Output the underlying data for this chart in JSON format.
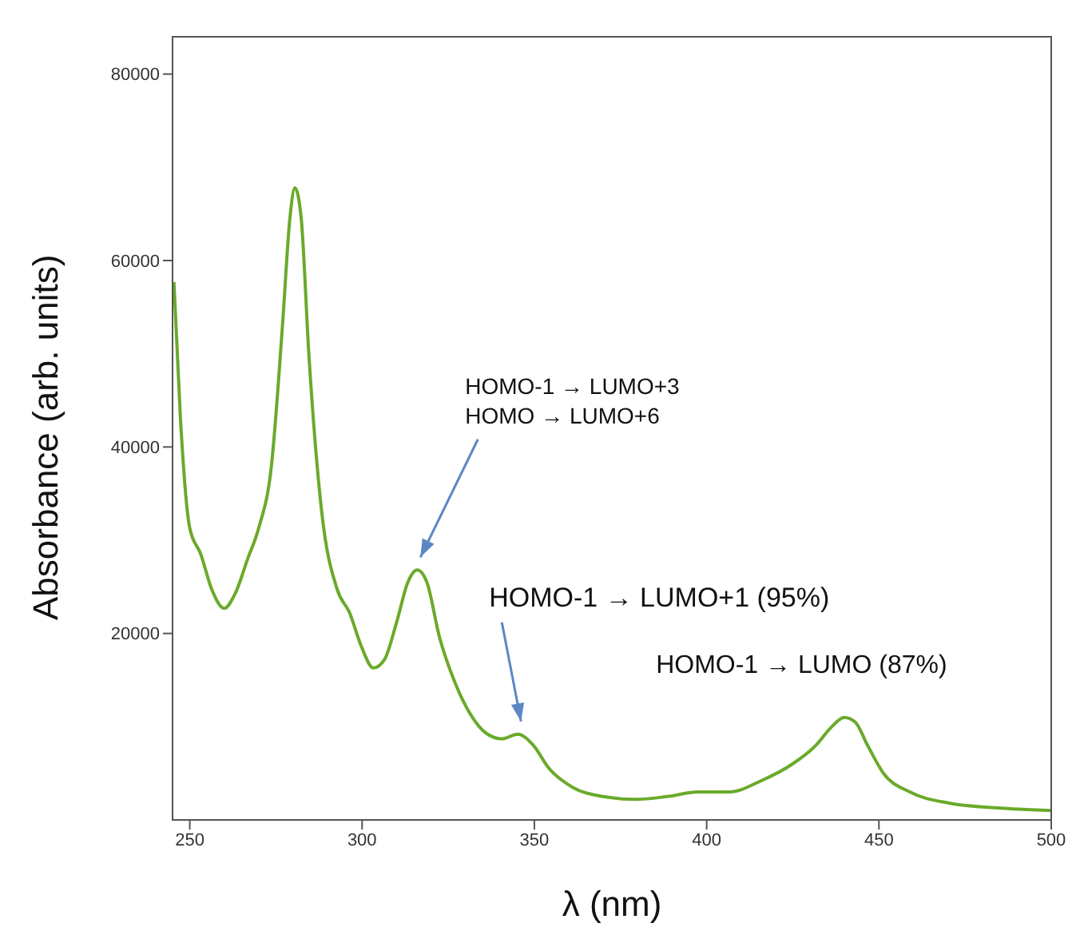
{
  "chart_data": {
    "type": "line",
    "xlabel": "λ (nm)",
    "ylabel": "Absorbance (arb. units)",
    "x": [
      245.4,
      247.3,
      250,
      253.2,
      256.4,
      260,
      263.2,
      266.8,
      270,
      273.7,
      276.9,
      279.1,
      280.5,
      282.3,
      284.6,
      288.3,
      292.8,
      296.4,
      299.6,
      303.3,
      306.5,
      310.1,
      313.3,
      316,
      318.8,
      322.4,
      327,
      331.5,
      336,
      340.6,
      345.2,
      349.7,
      354.3,
      361.1,
      370.2,
      379.3,
      388.4,
      397.5,
      406.6,
      415.8,
      424.9,
      431.7,
      436.3,
      439.9,
      443.1,
      446.7,
      451.3,
      459,
      470.4,
      484,
      500
    ],
    "series": [
      {
        "color": "#6aaa2a",
        "values": [
          57700,
          43000,
          31300,
          28500,
          24700,
          22700,
          24300,
          28000,
          31300,
          38000,
          53000,
          64700,
          67800,
          64700,
          49700,
          33000,
          24700,
          22200,
          18800,
          16300,
          17200,
          21300,
          25500,
          26800,
          25500,
          19700,
          14700,
          11300,
          9300,
          8700,
          9200,
          8000,
          5500,
          3500,
          2500,
          2200,
          2500,
          3000,
          3000,
          4200,
          6000,
          8000,
          10000,
          11000,
          10500,
          8000,
          5000,
          3000,
          1800,
          1300,
          1000
        ]
      }
    ],
    "xlim": [
      245,
      500
    ],
    "xticks": [
      250,
      300,
      350,
      400,
      450,
      500
    ],
    "ylim": [
      0,
      84000
    ],
    "yticks": [
      20000,
      40000,
      60000,
      80000
    ],
    "marker": "none",
    "line_style": "solid",
    "annotations": [
      {
        "text": "HOMO-1 → LUMO+3\nHOMO → LUMO+6",
        "x": 316,
        "y": 26800
      },
      {
        "text": "HOMO-1 → LUMO+1  (95%)",
        "x": 345.2,
        "y": 9200
      },
      {
        "text": "HOMO-1 → LUMO  (87%)",
        "x": 440,
        "y": 11000
      }
    ]
  }
}
